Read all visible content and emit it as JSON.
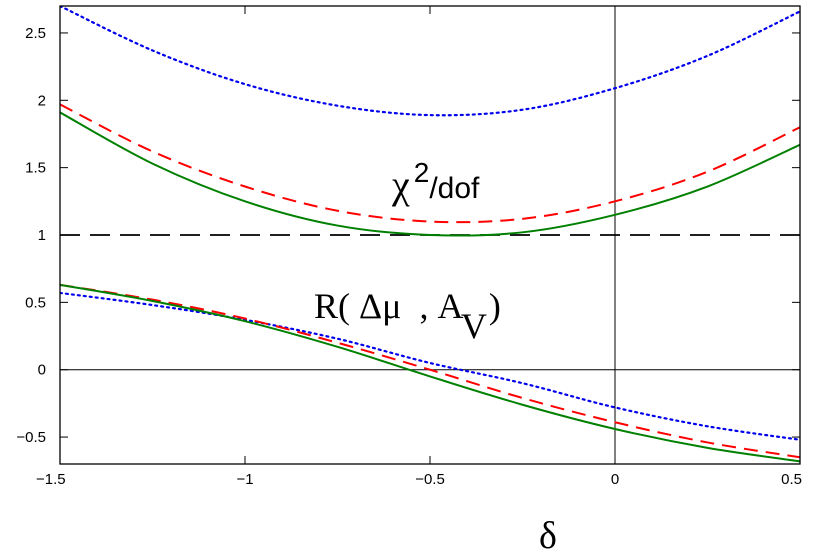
{
  "chart_data": {
    "type": "line",
    "xlabel": "δ",
    "ylabel": "",
    "xlim": [
      -1.5,
      0.5
    ],
    "ylim": [
      -0.7,
      2.7
    ],
    "xticks": [
      -1.5,
      -1,
      -0.5,
      0,
      0.5
    ],
    "xtick_labels": [
      "−1.5",
      "−1",
      "−0.5",
      "0",
      "0.5"
    ],
    "yticks": [
      -0.5,
      0,
      0.5,
      1,
      1.5,
      2,
      2.5
    ],
    "ytick_labels": [
      "−0.5",
      "0",
      "0.5",
      "1",
      "1.5",
      "2",
      "2.5"
    ],
    "grid": false,
    "annotations": {
      "chi2": {
        "base": "χ",
        "sup": "2",
        "rest": "/dof"
      },
      "corr": {
        "pre": "R( Δμ  , A",
        "sub": "V",
        "post": ")"
      }
    },
    "reference_lines": [
      {
        "axis": "y",
        "value": 1,
        "style": "dashed",
        "color": "#000000"
      },
      {
        "axis": "y",
        "value": 0,
        "style": "solid",
        "color": "#000000"
      },
      {
        "axis": "x",
        "value": 0,
        "style": "solid",
        "color": "#000000"
      }
    ],
    "series": [
      {
        "group": "chi2",
        "color": "#0000ee",
        "style": "dotted",
        "x": [
          -1.5,
          -1.25,
          -1.0,
          -0.75,
          -0.5,
          -0.25,
          0.0,
          0.25,
          0.5
        ],
        "y": [
          2.7,
          2.37,
          2.12,
          1.96,
          1.89,
          1.93,
          2.09,
          2.33,
          2.66
        ]
      },
      {
        "group": "chi2",
        "color": "#ff0000",
        "style": "dashed",
        "x": [
          -1.5,
          -1.25,
          -1.0,
          -0.75,
          -0.5,
          -0.25,
          0.0,
          0.25,
          0.5
        ],
        "y": [
          1.97,
          1.62,
          1.36,
          1.18,
          1.1,
          1.12,
          1.25,
          1.47,
          1.8
        ]
      },
      {
        "group": "chi2",
        "color": "#008000",
        "style": "solid",
        "x": [
          -1.5,
          -1.25,
          -1.0,
          -0.75,
          -0.5,
          -0.25,
          0.0,
          0.25,
          0.5
        ],
        "y": [
          1.91,
          1.53,
          1.25,
          1.07,
          1.0,
          1.02,
          1.15,
          1.36,
          1.67
        ]
      },
      {
        "group": "corr",
        "color": "#0000ee",
        "style": "dotted",
        "x": [
          -1.5,
          -1.25,
          -1.0,
          -0.75,
          -0.5,
          -0.25,
          0.0,
          0.25,
          0.5
        ],
        "y": [
          0.57,
          0.48,
          0.37,
          0.23,
          0.05,
          -0.1,
          -0.28,
          -0.42,
          -0.52
        ]
      },
      {
        "group": "corr",
        "color": "#ff0000",
        "style": "dashed",
        "x": [
          -1.5,
          -1.25,
          -1.0,
          -0.75,
          -0.5,
          -0.25,
          0.0,
          0.25,
          0.5
        ],
        "y": [
          0.63,
          0.52,
          0.38,
          0.2,
          0.0,
          -0.21,
          -0.39,
          -0.54,
          -0.65
        ]
      },
      {
        "group": "corr",
        "color": "#008000",
        "style": "solid",
        "x": [
          -1.5,
          -1.25,
          -1.0,
          -0.75,
          -0.5,
          -0.25,
          0.0,
          0.25,
          0.5
        ],
        "y": [
          0.63,
          0.51,
          0.36,
          0.17,
          -0.05,
          -0.26,
          -0.44,
          -0.58,
          -0.68
        ]
      }
    ]
  }
}
